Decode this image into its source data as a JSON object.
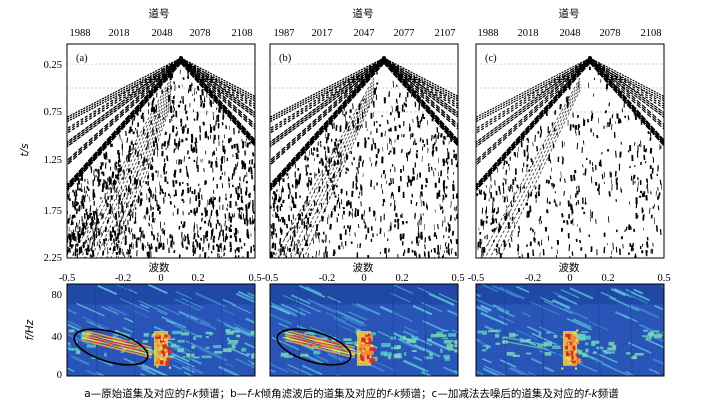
{
  "figure": {
    "caption": {
      "a_prefix": "a—原始道集及对应的",
      "fk": "f-k",
      "a_suffix": "频谱；b—",
      "b_mid": "倾角滤波后的道集及对应的",
      "b_suffix": "频谱；c—加减法去噪后的道集及对应的",
      "c_suffix": "频谱"
    },
    "trace_axis_title": "道号",
    "time_axis_title": "t/s",
    "wavenumber_axis_title": "波数",
    "freq_axis_title": "f/Hz",
    "time_ticks": [
      "0.25",
      "0.75",
      "1.25",
      "1.75",
      "2.25"
    ],
    "freq_ticks": [
      "80",
      "40",
      "0"
    ],
    "wavenumber_ticks": [
      "-0.5",
      "-0.2",
      "0",
      "0.2",
      "0.5"
    ]
  },
  "chart_data": [
    {
      "type": "heatmap",
      "panel": "(a)",
      "x_ticks": [
        "1988",
        "2018",
        "2048",
        "2078",
        "2108"
      ],
      "y_ticks": [
        "0.25",
        "0.75",
        "1.25",
        "1.75",
        "2.25"
      ],
      "xlabel": "道号",
      "ylabel": "t/s",
      "noise": "high"
    },
    {
      "type": "heatmap",
      "panel": "(b)",
      "x_ticks": [
        "1987",
        "2017",
        "2047",
        "2077",
        "2107"
      ],
      "y_ticks": [
        "0.25",
        "0.75",
        "1.25",
        "1.75",
        "2.25"
      ],
      "xlabel": "道号",
      "ylabel": "t/s",
      "noise": "medium"
    },
    {
      "type": "heatmap",
      "panel": "(c)",
      "x_ticks": [
        "1988",
        "2018",
        "2048",
        "2078",
        "2108"
      ],
      "y_ticks": [
        "0.25",
        "0.75",
        "1.25",
        "1.75",
        "2.25"
      ],
      "xlabel": "道号",
      "ylabel": "t/s",
      "noise": "low"
    },
    {
      "type": "heatmap",
      "panel": "a-fk",
      "x_ticks": [
        "-0.5",
        "-0.2",
        "0",
        "0.2",
        "0.5"
      ],
      "y_ticks": [
        "0",
        "40",
        "80"
      ],
      "xlabel": "波数",
      "ylabel": "f/Hz",
      "xlim": [
        -0.5,
        0.5
      ],
      "ylim": [
        0,
        90
      ],
      "ellipse": true
    },
    {
      "type": "heatmap",
      "panel": "b-fk",
      "x_ticks": [
        "-0.5",
        "-0.2",
        "0",
        "0.2",
        "0.5"
      ],
      "y_ticks": [
        "0",
        "40",
        "80"
      ],
      "xlabel": "波数",
      "ylabel": "f/Hz",
      "xlim": [
        -0.5,
        0.5
      ],
      "ylim": [
        0,
        90
      ],
      "ellipse": true
    },
    {
      "type": "heatmap",
      "panel": "c-fk",
      "x_ticks": [
        "-0.5",
        "-0.2",
        "0",
        "0.2",
        "0.5"
      ],
      "y_ticks": [
        "0",
        "40",
        "80"
      ],
      "xlabel": "波数",
      "ylabel": "f/Hz",
      "xlim": [
        -0.5,
        0.5
      ],
      "ylim": [
        0,
        90
      ],
      "ellipse": false
    }
  ]
}
